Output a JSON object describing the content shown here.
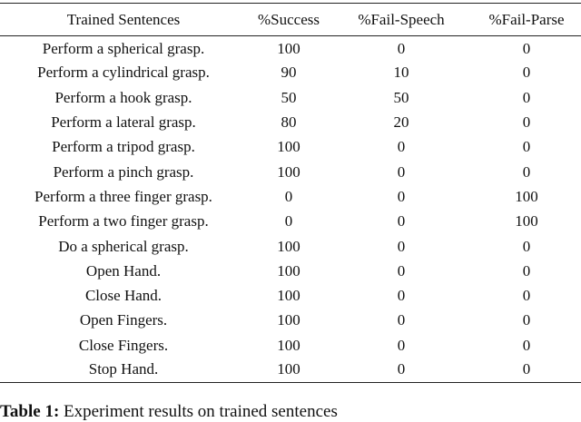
{
  "table": {
    "headers": [
      "Trained Sentences",
      "%Success",
      "%Fail-Speech",
      "%Fail-Parse"
    ],
    "rows": [
      [
        "Perform a spherical grasp.",
        "100",
        "0",
        "0"
      ],
      [
        "Perform a cylindrical grasp.",
        "90",
        "10",
        "0"
      ],
      [
        "Perform a hook grasp.",
        "50",
        "50",
        "0"
      ],
      [
        "Perform a lateral grasp.",
        "80",
        "20",
        "0"
      ],
      [
        "Perform a tripod grasp.",
        "100",
        "0",
        "0"
      ],
      [
        "Perform a pinch grasp.",
        "100",
        "0",
        "0"
      ],
      [
        "Perform a three finger grasp.",
        "0",
        "0",
        "100"
      ],
      [
        "Perform a two finger grasp.",
        "0",
        "0",
        "100"
      ],
      [
        "Do a spherical grasp.",
        "100",
        "0",
        "0"
      ],
      [
        "Open Hand.",
        "100",
        "0",
        "0"
      ],
      [
        "Close Hand.",
        "100",
        "0",
        "0"
      ],
      [
        "Open Fingers.",
        "100",
        "0",
        "0"
      ],
      [
        "Close Fingers.",
        "100",
        "0",
        "0"
      ],
      [
        "Stop Hand.",
        "100",
        "0",
        "0"
      ]
    ]
  },
  "caption": {
    "label": "Table 1:",
    "text": "Experiment results on trained sentences"
  }
}
